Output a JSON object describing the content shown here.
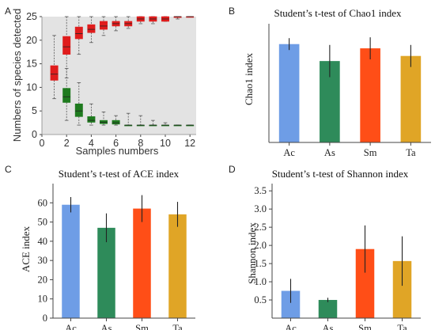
{
  "panels": {
    "A": {
      "letter": "A"
    },
    "B": {
      "letter": "B"
    },
    "C": {
      "letter": "C"
    },
    "D": {
      "letter": "D"
    }
  },
  "chart_data": [
    {
      "panel": "A",
      "type": "box",
      "title": "",
      "xlabel": "Samples numbers",
      "ylabel": "Numbers of species detected",
      "xlim": [
        0,
        12.5
      ],
      "ylim": [
        0,
        25
      ],
      "xticks": [
        0,
        2,
        4,
        6,
        8,
        10,
        12
      ],
      "yticks": [
        0,
        5,
        10,
        15,
        20,
        25
      ],
      "grid": false,
      "background": "#e3e3e3",
      "series": [
        {
          "color": "#e01c1c",
          "boxes": [
            {
              "x": 1,
              "whislo": 7.6,
              "q1": 11.5,
              "med": 12.8,
              "q3": 14.6,
              "whishi": 21.0
            },
            {
              "x": 2,
              "whislo": 12.0,
              "q1": 17.0,
              "med": 18.6,
              "q3": 20.8,
              "whishi": 25.0
            },
            {
              "x": 3,
              "whislo": 17.0,
              "q1": 20.3,
              "med": 21.4,
              "q3": 22.8,
              "whishi": 25.0
            },
            {
              "x": 4,
              "whislo": 19.5,
              "q1": 21.6,
              "med": 22.3,
              "q3": 23.3,
              "whishi": 25.0
            },
            {
              "x": 5,
              "whislo": 21.0,
              "q1": 22.3,
              "med": 23.0,
              "q3": 24.0,
              "whishi": 25.0
            },
            {
              "x": 6,
              "whislo": 22.0,
              "q1": 23.0,
              "med": 23.5,
              "q3": 24.0,
              "whishi": 25.0
            },
            {
              "x": 7,
              "whislo": 22.5,
              "q1": 23.0,
              "med": 23.5,
              "q3": 24.0,
              "whishi": 25.0
            },
            {
              "x": 8,
              "whislo": 23.5,
              "q1": 24.0,
              "med": 24.5,
              "q3": 25.0,
              "whishi": 25.0
            },
            {
              "x": 9,
              "whislo": 23.5,
              "q1": 24.0,
              "med": 24.5,
              "q3": 25.0,
              "whishi": 25.0
            },
            {
              "x": 10,
              "whislo": 24.0,
              "q1": 24.0,
              "med": 24.5,
              "q3": 25.0,
              "whishi": 25.0
            },
            {
              "x": 11,
              "whislo": 24.5,
              "q1": 24.8,
              "med": 25.0,
              "q3": 25.0,
              "whishi": 25.0
            },
            {
              "x": 12,
              "whislo": 25.0,
              "q1": 25.0,
              "med": 25.0,
              "q3": 25.0,
              "whishi": 25.0
            }
          ]
        },
        {
          "color": "#1e7a1e",
          "boxes": [
            {
              "x": 2,
              "whislo": 3.0,
              "q1": 6.8,
              "med": 8.0,
              "q3": 9.8,
              "whishi": 14.0
            },
            {
              "x": 3,
              "whislo": 2.0,
              "q1": 3.8,
              "med": 5.0,
              "q3": 6.5,
              "whishi": 11.0
            },
            {
              "x": 4,
              "whislo": 2.0,
              "q1": 2.6,
              "med": 3.0,
              "q3": 3.8,
              "whishi": 6.5
            },
            {
              "x": 5,
              "whislo": 2.0,
              "q1": 2.3,
              "med": 2.6,
              "q3": 3.0,
              "whishi": 4.8
            },
            {
              "x": 6,
              "whislo": 2.0,
              "q1": 2.2,
              "med": 2.5,
              "q3": 3.0,
              "whishi": 4.0
            },
            {
              "x": 7,
              "whislo": 2.0,
              "q1": 2.0,
              "med": 2.0,
              "q3": 2.0,
              "whishi": 4.5
            },
            {
              "x": 8,
              "whislo": 2.0,
              "q1": 2.0,
              "med": 2.0,
              "q3": 2.0,
              "whishi": 4.0
            },
            {
              "x": 9,
              "whislo": 2.0,
              "q1": 2.0,
              "med": 2.0,
              "q3": 2.0,
              "whishi": 3.0
            },
            {
              "x": 10,
              "whislo": 2.0,
              "q1": 2.0,
              "med": 2.0,
              "q3": 2.0,
              "whishi": 2.5
            },
            {
              "x": 11,
              "whislo": 2.0,
              "q1": 2.0,
              "med": 2.0,
              "q3": 2.0,
              "whishi": 2.0
            },
            {
              "x": 12,
              "whislo": 2.0,
              "q1": 2.0,
              "med": 2.0,
              "q3": 2.0,
              "whishi": 2.0
            }
          ]
        }
      ]
    },
    {
      "panel": "B",
      "type": "bar",
      "title": "Student’s t-test of Chao1 index",
      "xlabel": "",
      "ylabel": "Chao1 index",
      "categories": [
        "Ac",
        "As",
        "Sm",
        "Ta"
      ],
      "values": [
        58,
        48,
        55.5,
        51
      ],
      "errors": [
        3.5,
        9.5,
        6.5,
        6.5
      ],
      "colors": [
        "#6e9de6",
        "#2e8b5a",
        "#ff4e17",
        "#e0a526"
      ],
      "ylim": [
        0,
        70
      ],
      "yticks": []
    },
    {
      "panel": "C",
      "type": "bar",
      "title": "Student’s t-test of ACE index",
      "xlabel": "",
      "ylabel": "ACE index",
      "categories": [
        "Ac",
        "As",
        "Sm",
        "Ta"
      ],
      "values": [
        59,
        47,
        57,
        54
      ],
      "errors": [
        4,
        7.5,
        7,
        6.5
      ],
      "colors": [
        "#6e9de6",
        "#2e8b5a",
        "#ff4e17",
        "#e0a526"
      ],
      "ylim": [
        0,
        70
      ],
      "yticks": [
        0,
        10,
        20,
        30,
        40,
        50,
        60
      ]
    },
    {
      "panel": "D",
      "type": "bar",
      "title": "Student’s t-test of Shannon index",
      "xlabel": "",
      "ylabel": "Shannon index",
      "categories": [
        "Ac",
        "As",
        "Sm",
        "Ta"
      ],
      "values": [
        0.75,
        0.5,
        1.9,
        1.57
      ],
      "errors": [
        0.33,
        0.06,
        0.65,
        0.68
      ],
      "colors": [
        "#6e9de6",
        "#2e8b5a",
        "#ff4e17",
        "#e0a526"
      ],
      "ylim": [
        0,
        3.7
      ],
      "yticks": [
        0.5,
        1.0,
        1.5,
        2.0,
        2.5,
        3.0,
        3.5
      ],
      "ytick_labels": [
        "0.5",
        "1.0",
        "1.5",
        "2.0",
        "2.5",
        "3.0",
        "3.5"
      ]
    }
  ]
}
